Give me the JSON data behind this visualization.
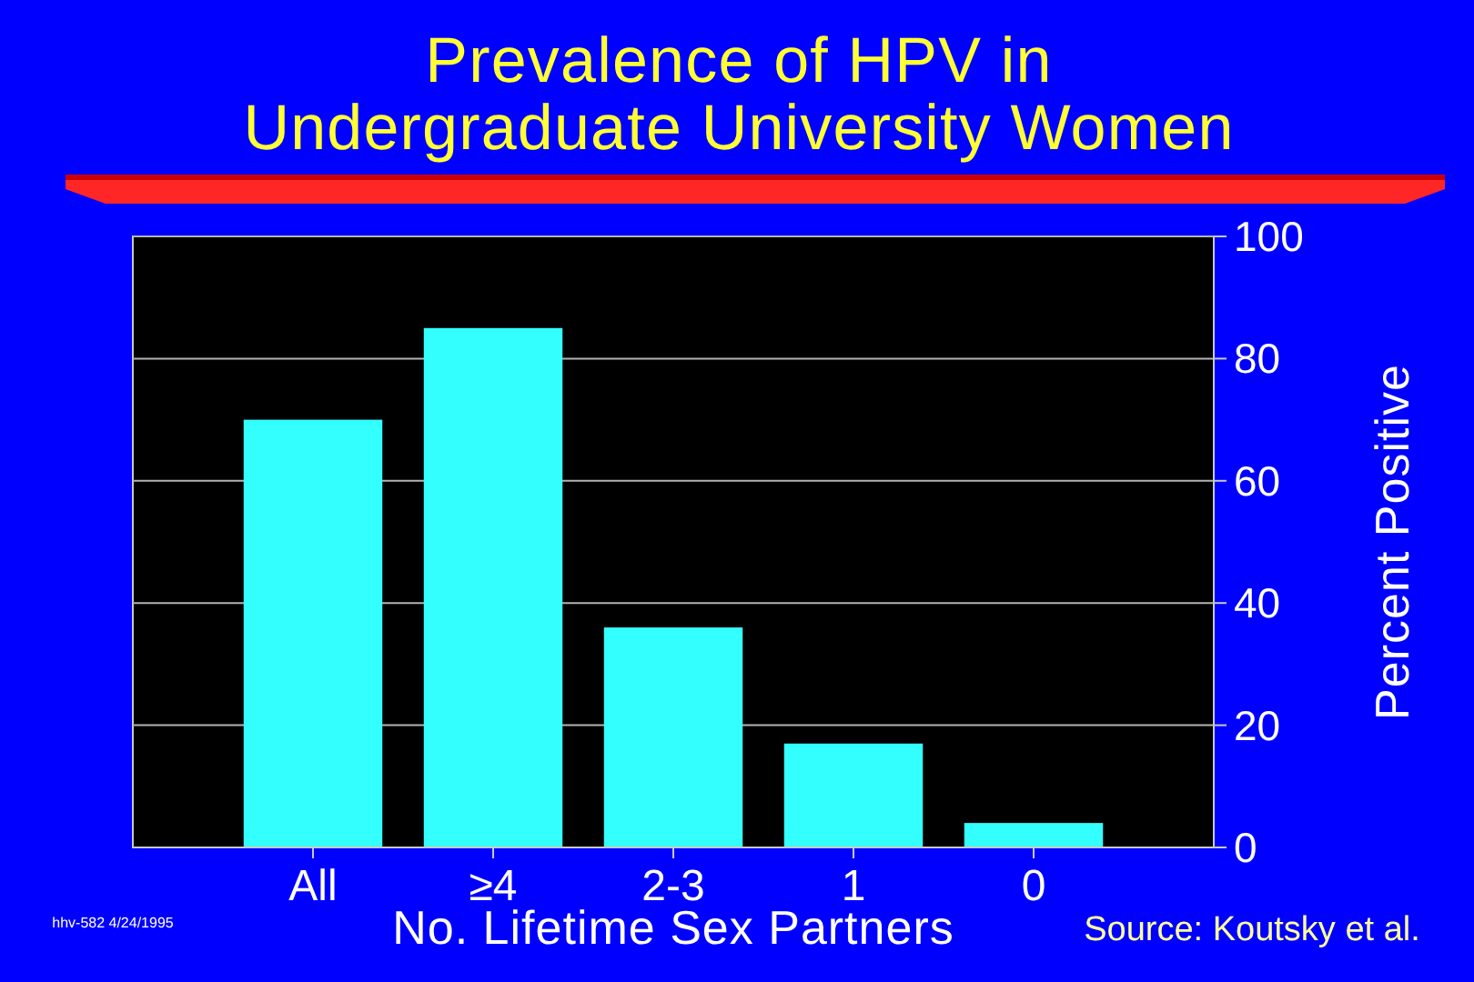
{
  "chart_data": {
    "type": "bar",
    "title": "Prevalence of HPV in\nUndergraduate University Women",
    "xlabel": "No. Lifetime Sex Partners",
    "ylabel": "Percent Positive",
    "categories": [
      "All",
      "≥4",
      "2-3",
      "1",
      "0"
    ],
    "values": [
      70,
      85,
      36,
      17,
      4
    ],
    "color": "#33ffff",
    "ylim": [
      0,
      100
    ],
    "yticks": [
      0,
      20,
      40,
      60,
      80,
      100
    ],
    "grid": "y",
    "annotations": [
      "Source: Koutsky et al.",
      "hhv-582 4/24/1995"
    ]
  }
}
